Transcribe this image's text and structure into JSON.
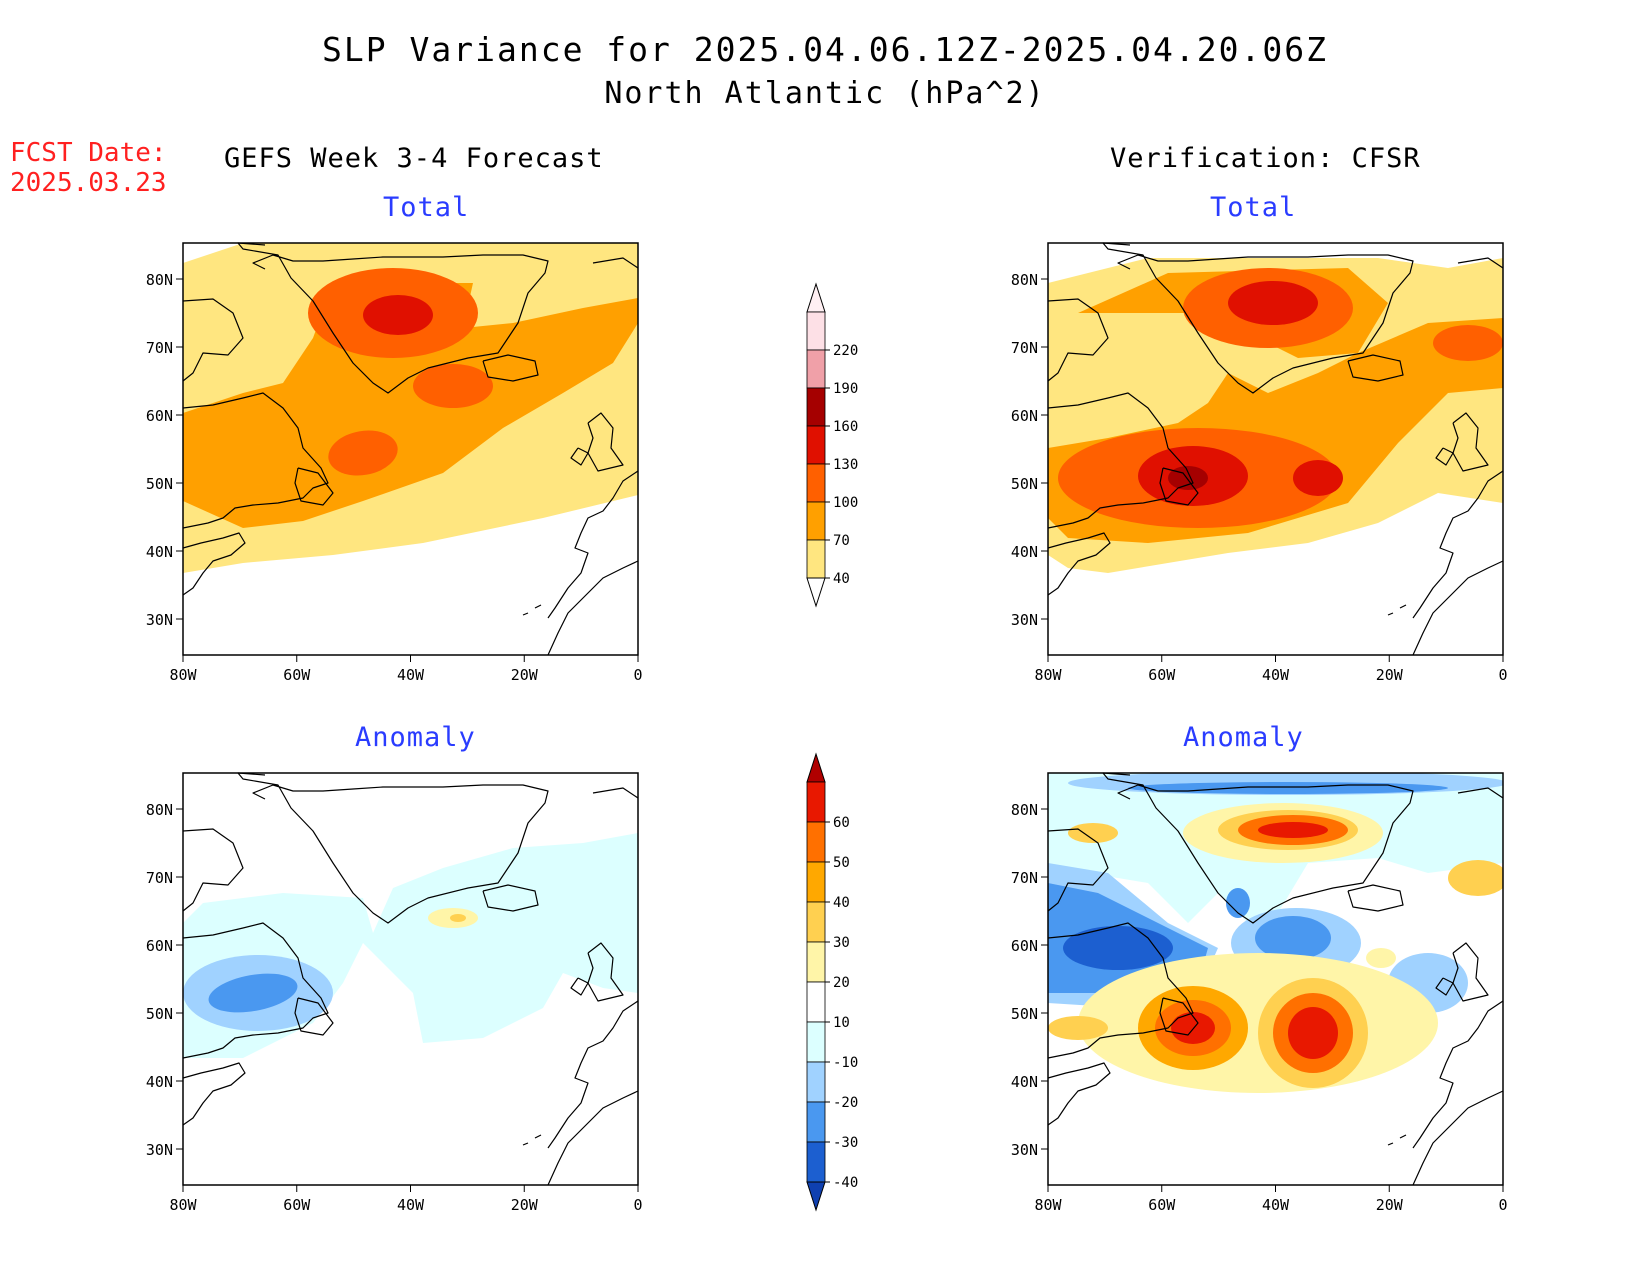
{
  "header": {
    "title_line1": "SLP Variance for 2025.04.06.12Z-2025.04.20.06Z",
    "title_line2": "North Atlantic (hPa^2)",
    "fcst_label": "FCST Date:",
    "fcst_date": "2025.03.23"
  },
  "columns": {
    "left_title": "GEFS Week 3-4 Forecast",
    "right_title": "Verification: CFSR"
  },
  "panels": {
    "top_left_title": "Total",
    "top_right_title": "Total",
    "bottom_left_title": "Anomaly",
    "bottom_right_title": "Anomaly"
  },
  "axes": {
    "lon_labels": [
      "80W",
      "60W",
      "40W",
      "20W",
      "0"
    ],
    "lat_labels": [
      "80N",
      "70N",
      "60N",
      "50N",
      "40N",
      "30N"
    ]
  },
  "colors": {
    "total": [
      "#ffe680",
      "#ffa000",
      "#ff6000",
      "#e01000",
      "#a50000",
      "#f0a0a8",
      "#fde0e6"
    ],
    "anomaly_pos": [
      "#fff5a8",
      "#ffd050",
      "#ffa800",
      "#ff7000",
      "#e81800",
      "#b00000"
    ],
    "anomaly_neg": [
      "#dcffff",
      "#a0d2ff",
      "#4a98f0",
      "#1c5fd0",
      "#0f40b0"
    ]
  },
  "colorbars": {
    "total": {
      "labels": [
        "220",
        "190",
        "160",
        "130",
        "100",
        "70",
        "40"
      ]
    },
    "anomaly": {
      "labels": [
        "60",
        "50",
        "40",
        "30",
        "20",
        "10",
        "-10",
        "-20",
        "-30",
        "-40"
      ]
    }
  }
}
